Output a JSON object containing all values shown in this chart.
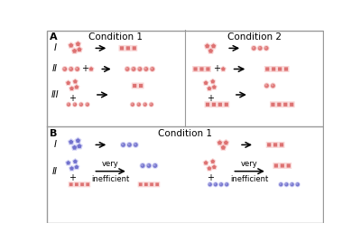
{
  "pink_dark": "#d45050",
  "pink_mid": "#e87878",
  "pink_light": "#f5b0b0",
  "blue_dark": "#5050c0",
  "blue_mid": "#7878d8",
  "blue_light": "#b0b0ee",
  "bg": "#ffffff",
  "border_color": "#999999",
  "panel_A_title1": "Condition 1",
  "panel_A_title2": "Condition 2",
  "panel_B_title": "Condition 1",
  "label_A": "A",
  "label_B": "B"
}
